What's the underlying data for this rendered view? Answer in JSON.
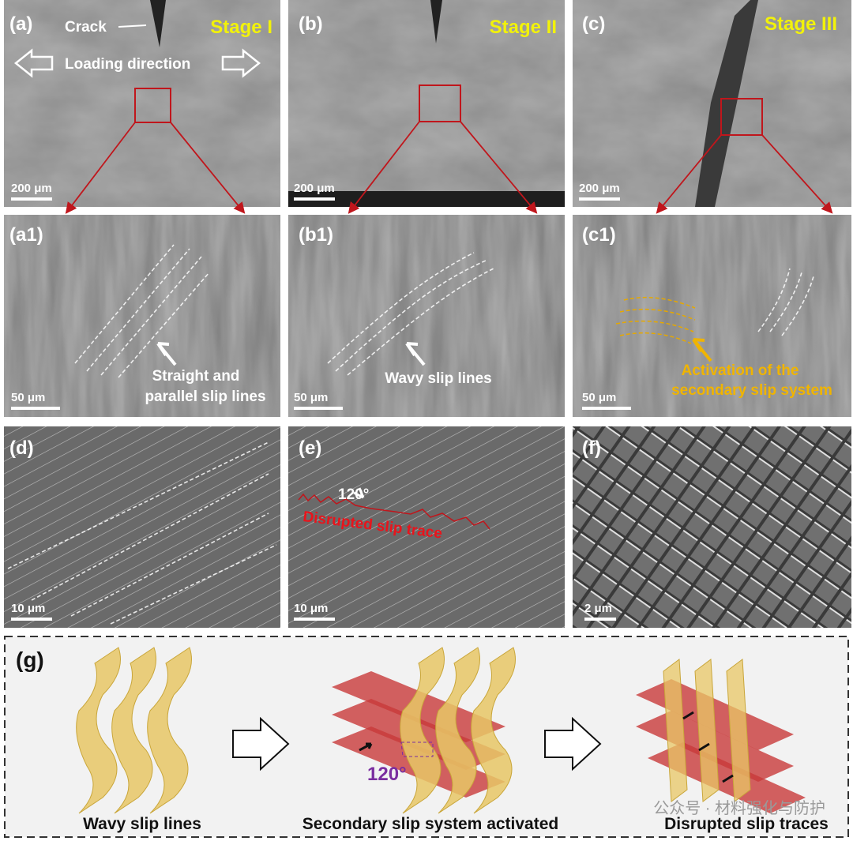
{
  "panels": [
    {
      "label": "(a)",
      "stage": "Stage I",
      "annotations": [
        "Crack",
        "Loading direction"
      ],
      "scale_bar": "200 μm"
    },
    {
      "label": "(b)",
      "stage": "Stage II",
      "scale_bar": "200 μm"
    },
    {
      "label": "(c)",
      "stage": "Stage III",
      "scale_bar": "200 μm"
    },
    {
      "label": "(a1)",
      "annotations": [
        "Straight and",
        "parallel slip lines"
      ],
      "scale_bar": "50 μm"
    },
    {
      "label": "(b1)",
      "annotations": [
        "Wavy slip lines"
      ],
      "scale_bar": "50 μm"
    },
    {
      "label": "(c1)",
      "annotations": [
        "Activation of the",
        "secondary slip system"
      ],
      "scale_bar": "50 μm"
    },
    {
      "label": "(d)",
      "scale_bar": "10 μm"
    },
    {
      "label": "(e)",
      "annotations": [
        "120°",
        "Disrupted slip trace"
      ],
      "scale_bar": "10 μm"
    },
    {
      "label": "(f)",
      "scale_bar": "2 μm"
    }
  ],
  "schematic": {
    "label": "(g)",
    "angle": "120°",
    "captions": [
      "Wavy slip lines",
      "Secondary slip system activated",
      "Disrupted slip traces"
    ],
    "watermark": "公众号 · 材料强化与防护"
  }
}
